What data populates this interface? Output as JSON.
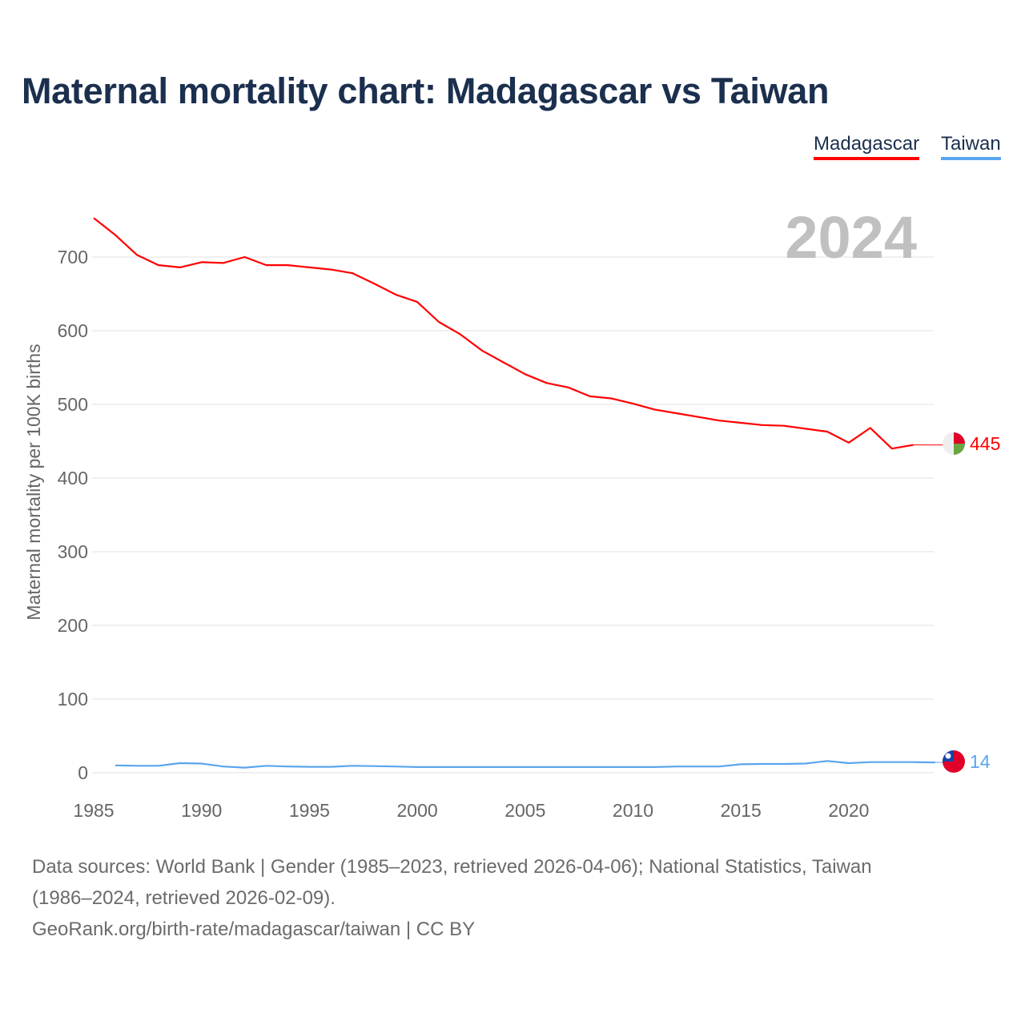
{
  "chart_data": {
    "type": "line",
    "title": "Maternal mortality chart: Madagascar vs Taiwan",
    "ylabel": "Maternal mortality per 100K births",
    "xlabel": "",
    "xlim": [
      1985,
      2024
    ],
    "ylim": [
      0,
      760
    ],
    "x_ticks": [
      1985,
      1990,
      1995,
      2000,
      2005,
      2010,
      2015,
      2020
    ],
    "y_ticks": [
      0,
      100,
      200,
      300,
      400,
      500,
      600,
      700
    ],
    "grid": true,
    "legend_position": "top-right",
    "year_label": "2024",
    "series": [
      {
        "name": "Madagascar",
        "color": "#ff0000",
        "end_label": "445",
        "x": [
          1985,
          1986,
          1987,
          1988,
          1989,
          1990,
          1991,
          1992,
          1993,
          1994,
          1995,
          1996,
          1997,
          1998,
          1999,
          2000,
          2001,
          2002,
          2003,
          2004,
          2005,
          2006,
          2007,
          2008,
          2009,
          2010,
          2011,
          2012,
          2013,
          2014,
          2015,
          2016,
          2017,
          2018,
          2019,
          2020,
          2021,
          2022,
          2023
        ],
        "values": [
          753,
          730,
          703,
          689,
          686,
          693,
          692,
          700,
          689,
          689,
          686,
          683,
          678,
          664,
          649,
          639,
          612,
          595,
          573,
          557,
          541,
          529,
          523,
          511,
          508,
          501,
          493,
          488,
          483,
          478,
          475,
          472,
          471,
          467,
          463,
          448,
          468,
          440,
          445
        ]
      },
      {
        "name": "Taiwan",
        "color": "#5aa5ee",
        "end_label": "14",
        "x": [
          1986,
          1987,
          1988,
          1989,
          1990,
          1991,
          1992,
          1993,
          1994,
          1995,
          1996,
          1997,
          1998,
          1999,
          2000,
          2001,
          2002,
          2003,
          2004,
          2005,
          2006,
          2007,
          2008,
          2009,
          2010,
          2011,
          2012,
          2013,
          2014,
          2015,
          2016,
          2017,
          2018,
          2019,
          2020,
          2021,
          2022,
          2023,
          2024
        ],
        "values": [
          10,
          9.5,
          9.5,
          13,
          12.5,
          8.5,
          7,
          9.5,
          8.5,
          8,
          8,
          9.5,
          9,
          8.5,
          7.7,
          7.7,
          7.7,
          7.7,
          7.7,
          7.7,
          7.7,
          7.7,
          7.7,
          7.7,
          7.7,
          7.7,
          8.5,
          8.5,
          8.5,
          11.5,
          12,
          12,
          12.5,
          16,
          13,
          14.5,
          14.5,
          14.5,
          14
        ]
      }
    ]
  },
  "footer": {
    "line1": "Data sources: World Bank | Gender (1985–2023, retrieved 2026-04-06); National Statistics, Taiwan",
    "line2": "(1986–2024, retrieved 2026-02-09).",
    "line3": "GeoRank.org/birth-rate/madagascar/taiwan | CC BY"
  }
}
